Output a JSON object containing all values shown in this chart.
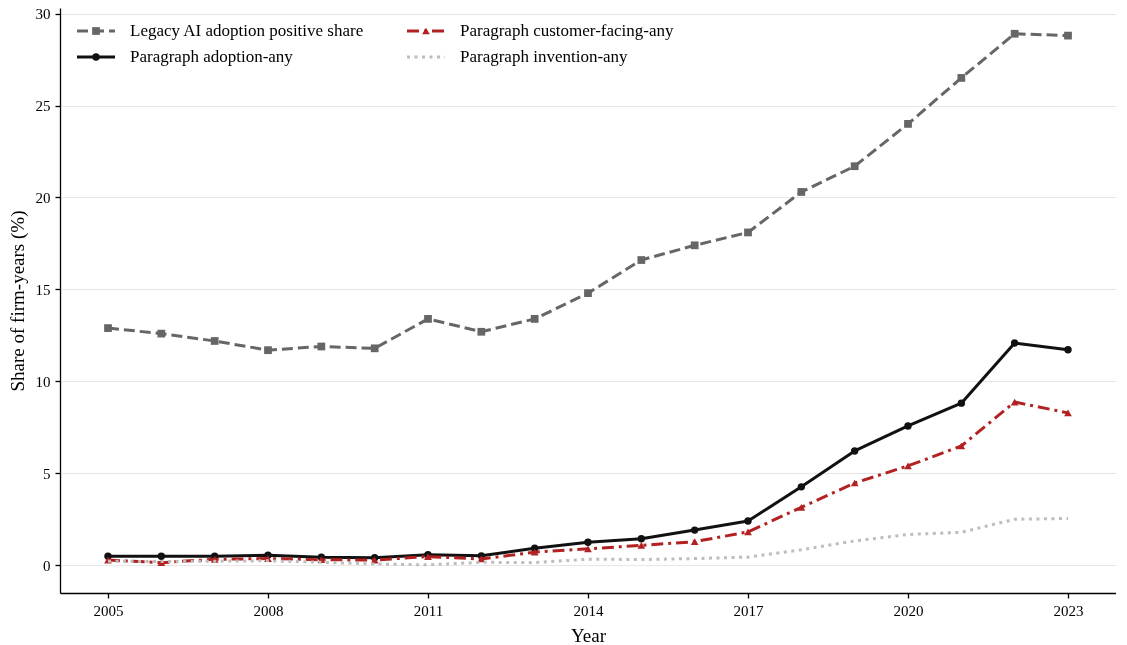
{
  "chart_data": {
    "type": "line",
    "xlabel": "Year",
    "ylabel": "Share of firm-years (%)",
    "x": [
      2005,
      2006,
      2007,
      2008,
      2009,
      2010,
      2011,
      2012,
      2013,
      2014,
      2015,
      2016,
      2017,
      2018,
      2019,
      2020,
      2021,
      2022,
      2023
    ],
    "xlim": [
      2004.1,
      2023.9
    ],
    "xticks": [
      2005,
      2008,
      2011,
      2014,
      2017,
      2020,
      2023
    ],
    "ylim": [
      -1.5,
      30.3
    ],
    "yticks": [
      0,
      5,
      10,
      15,
      20,
      25,
      30
    ],
    "grid": "y",
    "legend": "top left",
    "series": [
      {
        "name": "Legacy AI adoption positive share",
        "color": "#666666",
        "line_style": "dashed",
        "marker": "square",
        "values": [
          12.9,
          12.6,
          12.2,
          11.7,
          11.9,
          11.8,
          13.4,
          12.7,
          13.4,
          14.8,
          16.6,
          17.4,
          18.1,
          20.3,
          21.7,
          24.0,
          26.5,
          28.9,
          28.8
        ]
      },
      {
        "name": "Paragraph adoption-any",
        "color": "#111111",
        "line_style": "solid",
        "marker": "circle",
        "values": [
          0.5,
          0.5,
          0.5,
          0.55,
          0.45,
          0.42,
          0.58,
          0.52,
          0.93,
          1.26,
          1.45,
          1.92,
          2.41,
          4.27,
          6.22,
          7.58,
          8.82,
          12.09,
          11.72
        ]
      },
      {
        "name": "Paragraph customer-facing-any",
        "color": "#b22222",
        "line_style": "dashdot",
        "marker": "triangle",
        "values": [
          0.29,
          0.15,
          0.33,
          0.37,
          0.31,
          0.29,
          0.48,
          0.35,
          0.72,
          0.9,
          1.09,
          1.29,
          1.82,
          3.16,
          4.48,
          5.41,
          6.49,
          8.88,
          8.29
        ]
      },
      {
        "name": "Paragraph invention-any",
        "color": "#bdbdbd",
        "line_style": "dotted",
        "marker": "none",
        "values": [
          0.23,
          0.21,
          0.23,
          0.25,
          0.17,
          0.08,
          0.03,
          0.17,
          0.15,
          0.34,
          0.32,
          0.37,
          0.45,
          0.85,
          1.33,
          1.68,
          1.8,
          2.51,
          2.55
        ]
      }
    ]
  }
}
